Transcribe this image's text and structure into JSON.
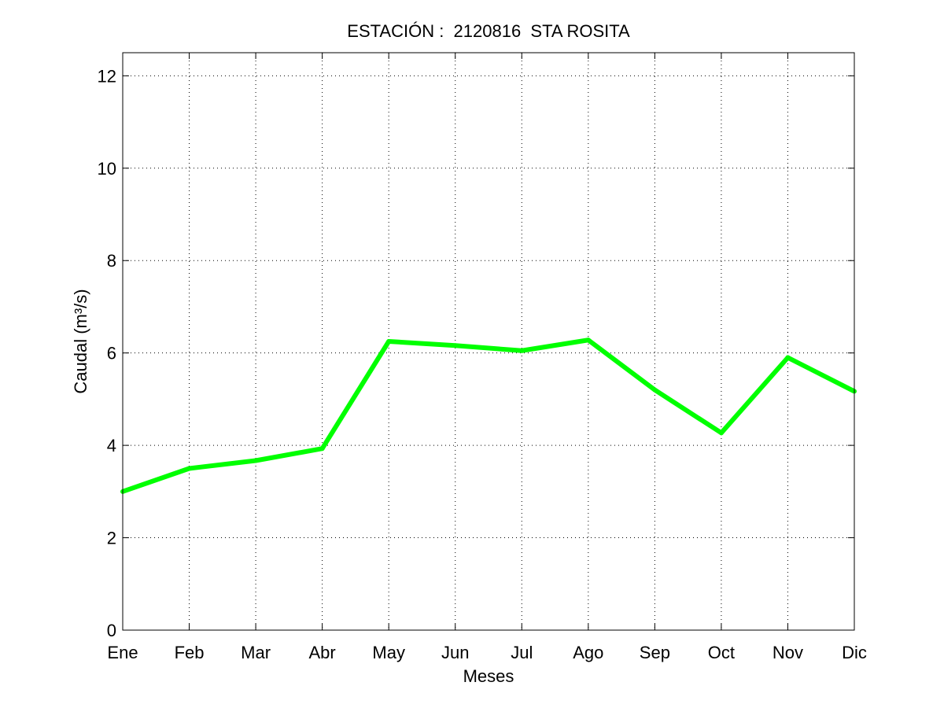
{
  "chart_data": {
    "type": "line",
    "title": "ESTACIÓN :  2120816  STA ROSITA",
    "xlabel": "Meses",
    "ylabel": "Caudal (m³/s)",
    "categories": [
      "Ene",
      "Feb",
      "Mar",
      "Abr",
      "May",
      "Jun",
      "Jul",
      "Ago",
      "Sep",
      "Oct",
      "Nov",
      "Dic"
    ],
    "series": [
      {
        "values": [
          3.0,
          3.5,
          3.67,
          3.93,
          6.25,
          6.16,
          6.05,
          6.28,
          5.2,
          4.27,
          5.9,
          5.17
        ],
        "color": "#00ff00"
      }
    ],
    "ylim": [
      0,
      12.5
    ],
    "yticks": [
      0,
      2,
      4,
      6,
      8,
      10,
      12
    ],
    "grid": true,
    "grid_style": "dotted",
    "line_color": "#00ff00",
    "background": "#ffffff",
    "legend": "none"
  }
}
